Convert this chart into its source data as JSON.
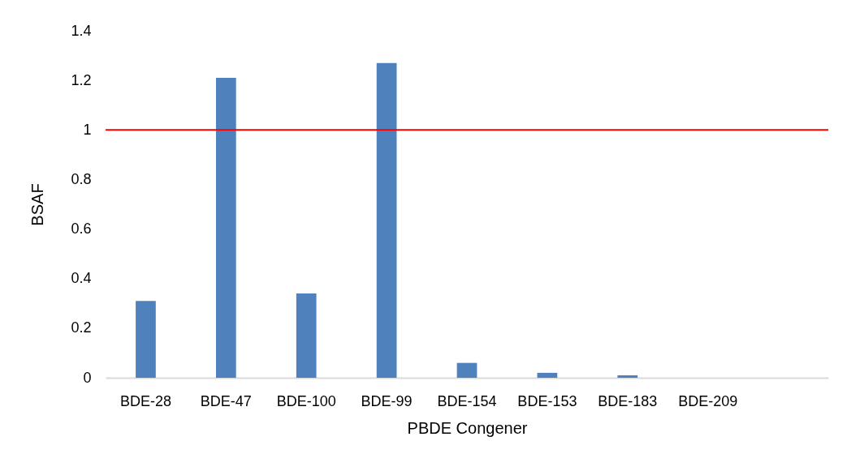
{
  "chart_data": {
    "type": "bar",
    "xlabel": "PBDE Congener",
    "ylabel": "BSAF",
    "categories": [
      "BDE-28",
      "BDE-47",
      "BDE-100",
      "BDE-99",
      "BDE-154",
      "BDE-153",
      "BDE-183",
      "BDE-209",
      null
    ],
    "values": [
      0.31,
      1.21,
      0.34,
      1.27,
      0.06,
      0.02,
      0.01,
      0,
      null
    ],
    "color": "#4f81bd",
    "ylim": [
      0,
      1.4
    ],
    "yticks": [
      0,
      0.2,
      0.4,
      0.6,
      0.8,
      1,
      1.2,
      1.4
    ],
    "ref_lines": [
      {
        "axis": "y",
        "value": 1,
        "color": "#ff0000"
      }
    ]
  }
}
